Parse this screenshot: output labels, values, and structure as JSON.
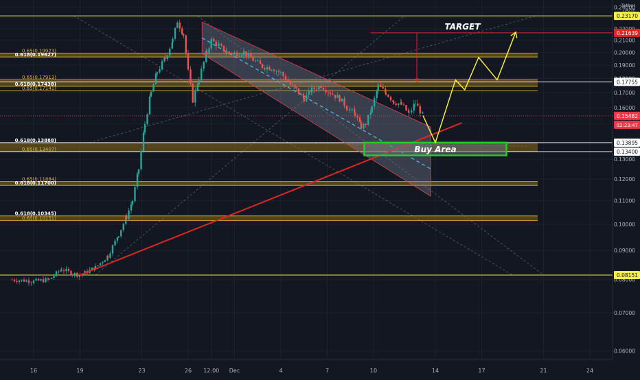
{
  "colors": {
    "background": "#131722",
    "grid": "#1e222d",
    "axis_text": "#b2b5be",
    "candle_up": "#26a69a",
    "candle_down": "#ef5350",
    "fib_line": "#c9a227",
    "fib_band": "#8a6a16",
    "resistance": "#e5e552",
    "white_level": "#ffffff",
    "trendline": "#e02525",
    "channel_fill": "#7a7f90",
    "channel_edge": "#e0424d",
    "projection": "#f3ef3a",
    "buy_box": "#1fd01f",
    "target_line": "#e02525",
    "mid_dash": "#4fb8e6",
    "last_price": "#f23645"
  },
  "axis": {
    "currency_line1": "Tether",
    "currency_line2": "USDT"
  },
  "chart_data": {
    "type": "candlestick",
    "ylim": [
      0.058,
      0.247
    ],
    "y_scale": "log",
    "grid": true,
    "y_ticks": [
      "0.24000",
      "0.23000",
      "0.22000",
      "0.21000",
      "0.20000",
      "0.19000",
      "0.18000",
      "0.17000",
      "0.16000",
      "0.15000",
      "0.14000",
      "0.13000",
      "0.12000",
      "0.11000",
      "0.10000",
      "0.09000",
      "0.08000",
      "0.07000",
      "0.06000"
    ],
    "x_ticks": [
      {
        "label": "16",
        "x": 0.0
      },
      {
        "label": "19",
        "x": 3.0
      },
      {
        "label": "23",
        "x": 7.0
      },
      {
        "label": "26",
        "x": 10.0
      },
      {
        "label": "12:00",
        "x": 11.5
      },
      {
        "label": "Dec",
        "x": 13.0
      },
      {
        "label": "4",
        "x": 16.0
      },
      {
        "label": "7",
        "x": 19.0
      },
      {
        "label": "10",
        "x": 22.0
      },
      {
        "label": "14",
        "x": 26.0
      },
      {
        "label": "17",
        "x": 29.0
      },
      {
        "label": "21",
        "x": 33.0
      },
      {
        "label": "24",
        "x": 36.0
      }
    ],
    "price_path": [
      [
        -1.4,
        0.08
      ],
      [
        0.0,
        0.0795
      ],
      [
        1.0,
        0.08
      ],
      [
        1.8,
        0.0835
      ],
      [
        2.5,
        0.082
      ],
      [
        3.0,
        0.0815
      ],
      [
        4.0,
        0.084
      ],
      [
        4.8,
        0.088
      ],
      [
        5.5,
        0.096
      ],
      [
        6.0,
        0.103
      ],
      [
        6.4,
        0.11
      ],
      [
        6.8,
        0.125
      ],
      [
        7.2,
        0.15
      ],
      [
        7.6,
        0.17
      ],
      [
        8.0,
        0.185
      ],
      [
        8.5,
        0.195
      ],
      [
        9.0,
        0.21
      ],
      [
        9.3,
        0.227
      ],
      [
        9.7,
        0.215
      ],
      [
        10.0,
        0.185
      ],
      [
        10.3,
        0.165
      ],
      [
        10.7,
        0.18
      ],
      [
        11.2,
        0.2
      ],
      [
        11.5,
        0.21
      ],
      [
        12.0,
        0.205
      ],
      [
        12.5,
        0.2
      ],
      [
        13.0,
        0.199
      ],
      [
        13.6,
        0.2
      ],
      [
        14.2,
        0.194
      ],
      [
        14.8,
        0.189
      ],
      [
        15.4,
        0.188
      ],
      [
        16.0,
        0.184
      ],
      [
        16.6,
        0.176
      ],
      [
        17.0,
        0.172
      ],
      [
        17.5,
        0.166
      ],
      [
        18.0,
        0.172
      ],
      [
        18.6,
        0.175
      ],
      [
        19.2,
        0.17
      ],
      [
        19.8,
        0.166
      ],
      [
        20.3,
        0.16
      ],
      [
        20.8,
        0.156
      ],
      [
        21.2,
        0.148
      ],
      [
        21.5,
        0.15
      ],
      [
        21.9,
        0.16
      ],
      [
        22.3,
        0.1745
      ],
      [
        22.8,
        0.17
      ],
      [
        23.3,
        0.164
      ],
      [
        23.8,
        0.162
      ],
      [
        24.3,
        0.156
      ],
      [
        24.7,
        0.163
      ],
      [
        25.2,
        0.1548
      ]
    ],
    "horizontal_levels": [
      {
        "label": "0.23170",
        "price": 0.2317,
        "color": "#e5e552"
      },
      {
        "label": "0.17755",
        "price": 0.17755,
        "color": "#ffffff"
      },
      {
        "label": "0.13895",
        "price": 0.13895,
        "color": "#ffffff"
      },
      {
        "label": "0.13400",
        "price": 0.134,
        "color": "#ffffff"
      },
      {
        "label": "0.08151",
        "price": 0.08151,
        "color": "#e5e552"
      }
    ],
    "fib_bands": [
      {
        "upper": {
          "label": "0.65(0.19923)",
          "price": 0.19923
        },
        "lower": {
          "label": "0.618(0.19627)",
          "price": 0.19627
        }
      },
      {
        "upper": {
          "label": "0.65(0.17913)",
          "price": 0.17913
        },
        "lower": {
          "label": "0.618(0.17438)",
          "price": 0.17438
        },
        "extra": {
          "label": "0.65(0.17141)",
          "price": 0.17141
        }
      },
      {
        "upper": {
          "label": "0.618(0.13888)",
          "price": 0.13888
        },
        "lower": {
          "label": "0.65(0.13407)",
          "price": 0.13407
        }
      },
      {
        "upper": {
          "label": "0.65(0.11884)",
          "price": 0.11884
        },
        "lower": {
          "label": "0.618(0.11700)",
          "price": 0.117
        }
      },
      {
        "upper": {
          "label": "0.618(0.10345)",
          "price": 0.10345
        },
        "lower": {
          "label": "0.65(0.10151)",
          "price": 0.10151
        }
      }
    ],
    "channel": {
      "upper": [
        [
          10.9,
          0.226
        ],
        [
          25.7,
          0.148
        ]
      ],
      "lower": [
        [
          10.9,
          0.199
        ],
        [
          25.7,
          0.112
        ]
      ],
      "mid": [
        [
          10.9,
          0.212
        ],
        [
          25.7,
          0.125
        ]
      ]
    },
    "trendline": [
      [
        3.0,
        0.0815
      ],
      [
        27.7,
        0.1505
      ]
    ],
    "buy_area": {
      "label": "Buy Area",
      "x_from": 21.4,
      "x_to": 30.6,
      "top": 0.139,
      "bottom": 0.132
    },
    "target": {
      "label": "TARGET",
      "price": 0.2164,
      "x_from": 21.8,
      "x_to": 33.3
    },
    "target_arrow": {
      "x": 24.8,
      "from": 0.2164,
      "to": 0.1775
    },
    "projection": [
      [
        25.2,
        0.155
      ],
      [
        26.0,
        0.139
      ],
      [
        27.3,
        0.179
      ],
      [
        27.9,
        0.172
      ],
      [
        28.8,
        0.196
      ],
      [
        30.0,
        0.179
      ],
      [
        31.2,
        0.217
      ]
    ],
    "last_price": {
      "label": "0.15482",
      "price": 0.15482,
      "countdown": "02:23:47"
    },
    "diagonal_guides": [
      [
        [
          2.6,
          0.2317
        ],
        [
          31.0,
          0.0815
        ]
      ],
      [
        [
          10.6,
          0.2317
        ],
        [
          33.0,
          0.0815
        ]
      ],
      [
        [
          3.6,
          0.139
        ],
        [
          32.5,
          0.2317
        ]
      ],
      [
        [
          4.0,
          0.0815
        ],
        [
          24.0,
          0.2317
        ]
      ],
      [
        [
          12.6,
          0.139
        ],
        [
          32.0,
          0.137
        ]
      ]
    ]
  }
}
